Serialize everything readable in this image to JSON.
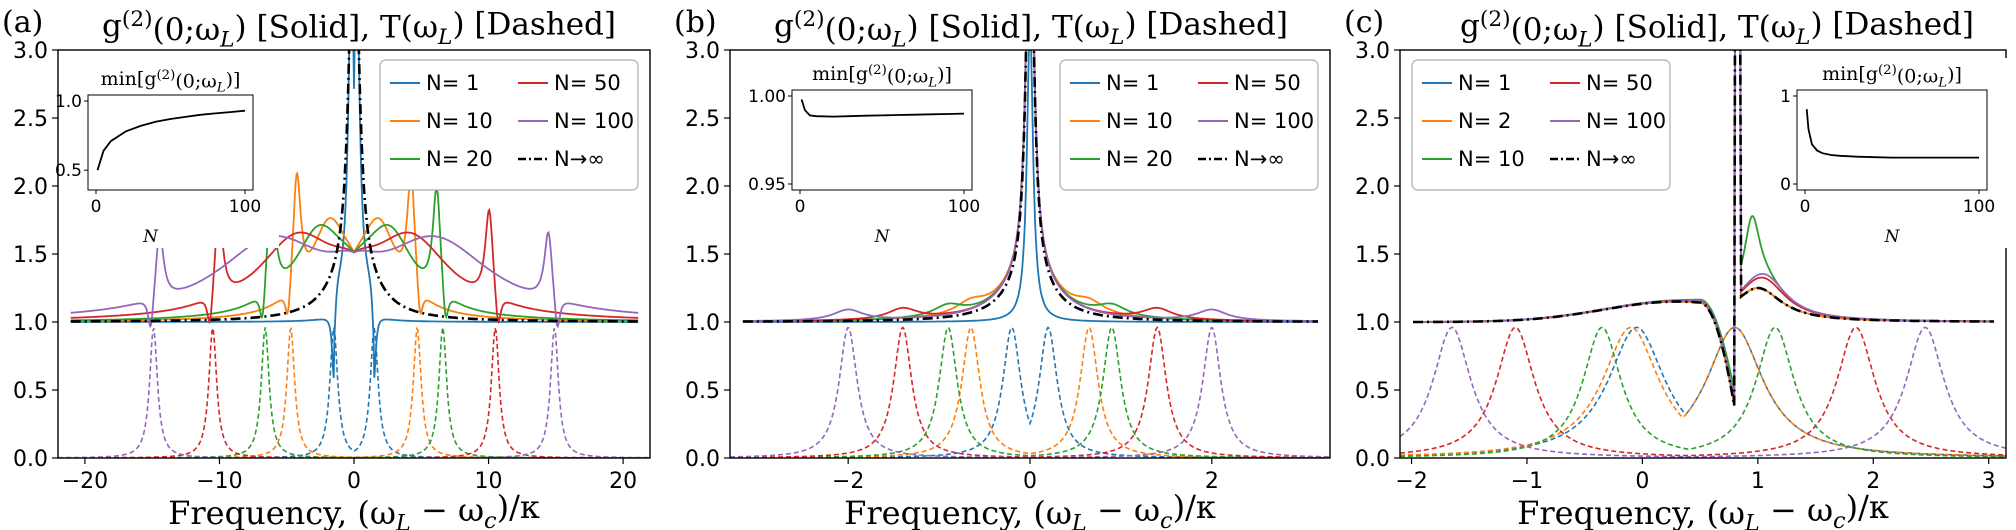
{
  "chart_data": [
    {
      "panel": "(a)",
      "type": "line",
      "title": "g^(2)(0;ω_L) [Solid], T(ω_L) [Dashed]",
      "xlabel": "Frequency, (ω_L − ω_c)/κ",
      "xlim": [
        -22,
        22
      ],
      "ylim": [
        0,
        3
      ],
      "xticks": [
        -20,
        -10,
        0,
        10,
        20
      ],
      "yticks": [
        0.0,
        0.5,
        1.0,
        1.5,
        2.0,
        2.5,
        3.0
      ],
      "grid": false,
      "legend": {
        "placement": "top-right",
        "entries": [
          {
            "text": "N= 1",
            "color": "#1f77b4",
            "style": "solid"
          },
          {
            "text": "N= 10",
            "color": "#ff7f0e",
            "style": "solid"
          },
          {
            "text": "N= 20",
            "color": "#2ca02c",
            "style": "solid"
          },
          {
            "text": "N= 50",
            "color": "#d62728",
            "style": "solid"
          },
          {
            "text": "N= 100",
            "color": "#9467bd",
            "style": "solid"
          },
          {
            "text": "N→∞",
            "color": "#000000",
            "style": "dashdot"
          }
        ]
      },
      "transmission_peaks": [
        {
          "N": "1",
          "color": "#1f77b4",
          "centers": [
            -1.5,
            1.5
          ],
          "width": 0.35
        },
        {
          "N": "10",
          "color": "#ff7f0e",
          "centers": [
            -4.7,
            4.7
          ],
          "width": 0.35
        },
        {
          "N": "20",
          "color": "#2ca02c",
          "centers": [
            -6.6,
            6.6
          ],
          "width": 0.35
        },
        {
          "N": "50",
          "color": "#d62728",
          "centers": [
            -10.5,
            10.5
          ],
          "width": 0.35
        },
        {
          "N": "100",
          "color": "#9467bd",
          "centers": [
            -14.9,
            14.9
          ],
          "width": 0.35
        }
      ],
      "inset": {
        "title": "min[g^(2)(0;ω_L)]",
        "xlabel": "N",
        "xlim": [
          0,
          100
        ],
        "ylim": [
          0.4,
          1.0
        ],
        "xticks": [
          0,
          100
        ],
        "yticks": [
          0.5,
          1.0
        ],
        "x": [
          1,
          5,
          10,
          20,
          30,
          40,
          50,
          60,
          70,
          80,
          90,
          100
        ],
        "y": [
          0.5,
          0.64,
          0.71,
          0.78,
          0.82,
          0.85,
          0.87,
          0.885,
          0.9,
          0.91,
          0.92,
          0.93
        ]
      }
    },
    {
      "panel": "(b)",
      "type": "line",
      "title": "g^(2)(0;ω_L) [Solid], T(ω_L) [Dashed]",
      "xlabel": "Frequency, (ω_L − ω_c)/κ",
      "xlim": [
        -3.3,
        3.3
      ],
      "ylim": [
        0,
        3
      ],
      "xticks": [
        -2,
        0,
        2
      ],
      "yticks": [
        0.0,
        0.5,
        1.0,
        1.5,
        2.0,
        2.5,
        3.0
      ],
      "grid": false,
      "legend": {
        "placement": "top-right",
        "entries": [
          {
            "text": "N= 1",
            "color": "#1f77b4",
            "style": "solid"
          },
          {
            "text": "N= 10",
            "color": "#ff7f0e",
            "style": "solid"
          },
          {
            "text": "N= 20",
            "color": "#2ca02c",
            "style": "solid"
          },
          {
            "text": "N= 50",
            "color": "#d62728",
            "style": "solid"
          },
          {
            "text": "N= 100",
            "color": "#9467bd",
            "style": "solid"
          },
          {
            "text": "N→∞",
            "color": "#000000",
            "style": "dashdot"
          }
        ]
      },
      "transmission_peaks": [
        {
          "N": "1",
          "color": "#1f77b4",
          "centers": [
            -0.2,
            0.2
          ],
          "width": 0.12
        },
        {
          "N": "10",
          "color": "#ff7f0e",
          "centers": [
            -0.65,
            0.65
          ],
          "width": 0.12
        },
        {
          "N": "20",
          "color": "#2ca02c",
          "centers": [
            -0.9,
            0.9
          ],
          "width": 0.12
        },
        {
          "N": "50",
          "color": "#d62728",
          "centers": [
            -1.4,
            1.4
          ],
          "width": 0.12
        },
        {
          "N": "100",
          "color": "#9467bd",
          "centers": [
            -2.0,
            2.0
          ],
          "width": 0.12
        }
      ],
      "inset": {
        "title": "min[g^(2)(0;ω_L)]",
        "xlabel": "N",
        "xlim": [
          0,
          100
        ],
        "ylim": [
          0.95,
          1.0
        ],
        "xticks": [
          0,
          100
        ],
        "yticks": [
          0.95,
          1.0
        ],
        "x": [
          1,
          3,
          6,
          10,
          20,
          30,
          40,
          50,
          60,
          70,
          80,
          90,
          100
        ],
        "y": [
          0.998,
          0.992,
          0.989,
          0.9885,
          0.9883,
          0.9885,
          0.9888,
          0.989,
          0.9892,
          0.9894,
          0.9896,
          0.9898,
          0.99
        ]
      }
    },
    {
      "panel": "(c)",
      "type": "line",
      "title": "g^(2)(0;ω_L) [Solid], T(ω_L) [Dashed]",
      "xlabel": "Frequency, (ω_L − ω_c)/κ",
      "xlim": [
        -2.1,
        3.15
      ],
      "ylim": [
        0,
        3
      ],
      "xticks": [
        -2,
        -1,
        0,
        1,
        2,
        3
      ],
      "yticks": [
        0.0,
        0.5,
        1.0,
        1.5,
        2.0,
        2.5,
        3.0
      ],
      "grid": false,
      "legend": {
        "placement": "top-left",
        "entries": [
          {
            "text": "N= 1",
            "color": "#1f77b4",
            "style": "solid"
          },
          {
            "text": "N= 2",
            "color": "#ff7f0e",
            "style": "solid"
          },
          {
            "text": "N= 10",
            "color": "#2ca02c",
            "style": "solid"
          },
          {
            "text": "N= 50",
            "color": "#d62728",
            "style": "solid"
          },
          {
            "text": "N= 100",
            "color": "#9467bd",
            "style": "solid"
          },
          {
            "text": "N→∞",
            "color": "#000000",
            "style": "dashdot"
          }
        ]
      },
      "transmission_peaks": [
        {
          "N": "1",
          "color": "#1f77b4",
          "centers": [
            -0.05,
            0.8
          ],
          "width": 0.3
        },
        {
          "N": "2",
          "color": "#ff7f0e",
          "centers": [
            -0.1,
            0.8
          ],
          "width": 0.3
        },
        {
          "N": "10",
          "color": "#2ca02c",
          "centers": [
            -0.35,
            1.15
          ],
          "width": 0.2
        },
        {
          "N": "50",
          "color": "#d62728",
          "centers": [
            -1.1,
            1.85
          ],
          "width": 0.2
        },
        {
          "N": "100",
          "color": "#9467bd",
          "centers": [
            -1.65,
            2.45
          ],
          "width": 0.2
        }
      ],
      "inset": {
        "title": "min[g^(2)(0;ω_L)]",
        "xlabel": "N",
        "xlim": [
          0,
          100
        ],
        "ylim": [
          0,
          1
        ],
        "xticks": [
          0,
          100
        ],
        "yticks": [
          0,
          1
        ],
        "x": [
          1,
          2,
          4,
          7,
          10,
          15,
          20,
          30,
          40,
          50,
          60,
          70,
          80,
          90,
          100
        ],
        "y": [
          0.85,
          0.62,
          0.45,
          0.38,
          0.35,
          0.33,
          0.32,
          0.31,
          0.305,
          0.3,
          0.3,
          0.3,
          0.3,
          0.3,
          0.3
        ]
      }
    }
  ]
}
